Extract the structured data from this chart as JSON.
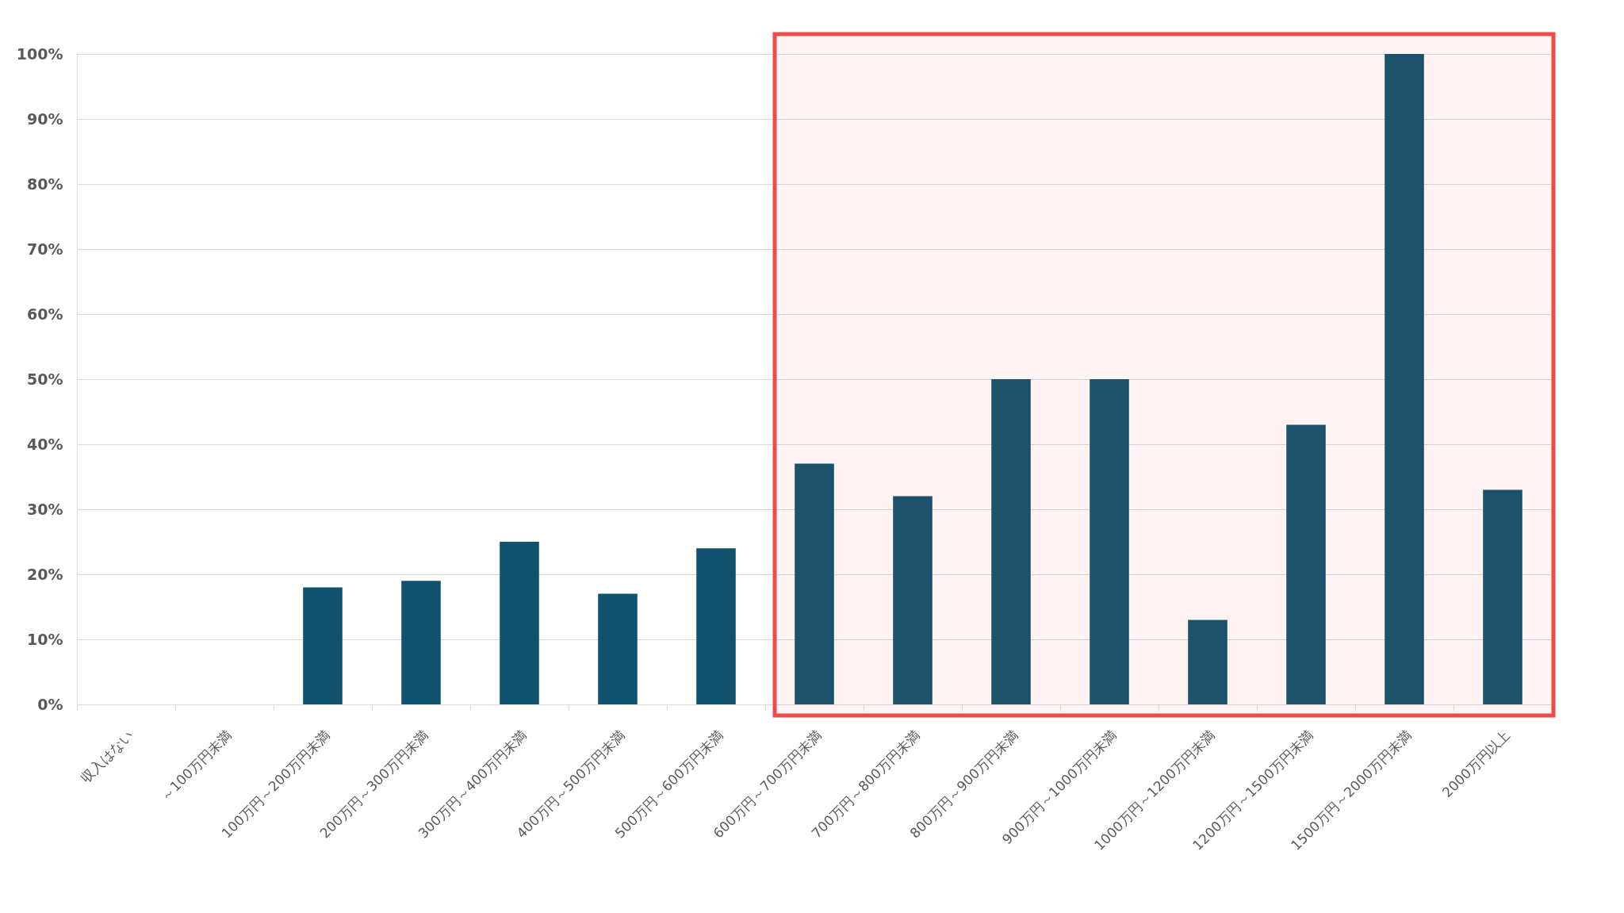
{
  "chart_data": {
    "type": "bar",
    "categories": [
      "収入はない",
      "～100万円未満",
      "100万円～200万円未満",
      "200万円～300万円未満",
      "300万円～400万円未満",
      "400万円～500万円未満",
      "500万円～600万円未満",
      "600万円～700万円未満",
      "700万円～800万円未満",
      "800万円～900万円未満",
      "900万円～1000万円未満",
      "1000万円～1200万円未満",
      "1200万円～1500万円未満",
      "1500万円～2000万円未満",
      "2000万円以上"
    ],
    "values": [
      0,
      0,
      18,
      19,
      25,
      17,
      24,
      37,
      32,
      50,
      50,
      13,
      43,
      100,
      33
    ],
    "color": "#11536f",
    "ylim": [
      0,
      100
    ],
    "yticks": [
      {
        "value": 0,
        "label": "0%"
      },
      {
        "value": 10,
        "label": "10%"
      },
      {
        "value": 20,
        "label": "20%"
      },
      {
        "value": 30,
        "label": "30%"
      },
      {
        "value": 40,
        "label": "40%"
      },
      {
        "value": 50,
        "label": "50%"
      },
      {
        "value": 60,
        "label": "60%"
      },
      {
        "value": 70,
        "label": "70%"
      },
      {
        "value": 80,
        "label": "80%"
      },
      {
        "value": 90,
        "label": "90%"
      },
      {
        "value": 100,
        "label": "100%"
      }
    ],
    "grid": "y",
    "bands": [
      {
        "axis": "x",
        "from": "600万円～700万円未満",
        "to": "2000万円以上",
        "color": "#ee4b4b"
      }
    ]
  }
}
